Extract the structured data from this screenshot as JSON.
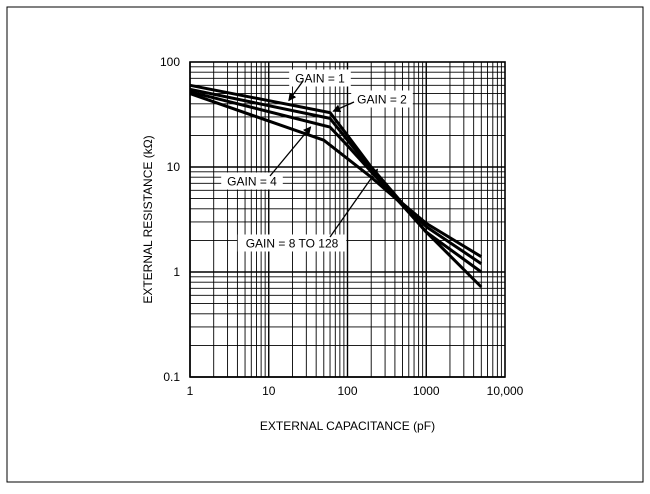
{
  "chart_data": {
    "type": "line",
    "title": "",
    "xlabel": "EXTERNAL CAPACITANCE (pF)",
    "ylabel": "EXTERNAL RESISTANCE (kΩ)",
    "x_scale": "log",
    "y_scale": "log",
    "xlim": [
      1,
      10000
    ],
    "ylim": [
      0.1,
      100
    ],
    "x_ticks": [
      1,
      10,
      100,
      1000,
      10000
    ],
    "x_tick_labels": [
      "1",
      "10",
      "100",
      "1000",
      "10,000"
    ],
    "y_ticks": [
      0.1,
      1,
      10,
      100
    ],
    "y_tick_labels": [
      "0.1",
      "1",
      "10",
      "100"
    ],
    "grid": true,
    "series": [
      {
        "name": "GAIN = 1",
        "points": [
          [
            1,
            60
          ],
          [
            60,
            33
          ],
          [
            100,
            20
          ],
          [
            200,
            10
          ],
          [
            500,
            4.5
          ],
          [
            1000,
            2.9
          ],
          [
            5000,
            1.4
          ]
        ]
      },
      {
        "name": "GAIN = 2",
        "points": [
          [
            1,
            55
          ],
          [
            60,
            29
          ],
          [
            100,
            18
          ],
          [
            200,
            9.5
          ],
          [
            500,
            4.4
          ],
          [
            1000,
            2.7
          ],
          [
            5000,
            1.2
          ]
        ]
      },
      {
        "name": "GAIN = 4",
        "points": [
          [
            1,
            52
          ],
          [
            60,
            24
          ],
          [
            100,
            16
          ],
          [
            200,
            9
          ],
          [
            500,
            4.3
          ],
          [
            1000,
            2.4
          ],
          [
            5000,
            1.0
          ]
        ]
      },
      {
        "name": "GAIN = 8 TO 128",
        "points": [
          [
            1,
            50
          ],
          [
            50,
            18
          ],
          [
            100,
            12
          ],
          [
            200,
            8
          ],
          [
            500,
            4.4
          ],
          [
            1000,
            2.4
          ],
          [
            5000,
            0.72
          ]
        ]
      }
    ],
    "annotations": [
      {
        "text": "GAIN = 1",
        "x": 18,
        "y": 43
      },
      {
        "text": "GAIN = 2",
        "x": 66,
        "y": 34
      },
      {
        "text": "GAIN = 4",
        "x": 34,
        "y": 24
      },
      {
        "text": "GAIN = 8 TO 128",
        "x": 240,
        "y": 9.5
      }
    ]
  }
}
